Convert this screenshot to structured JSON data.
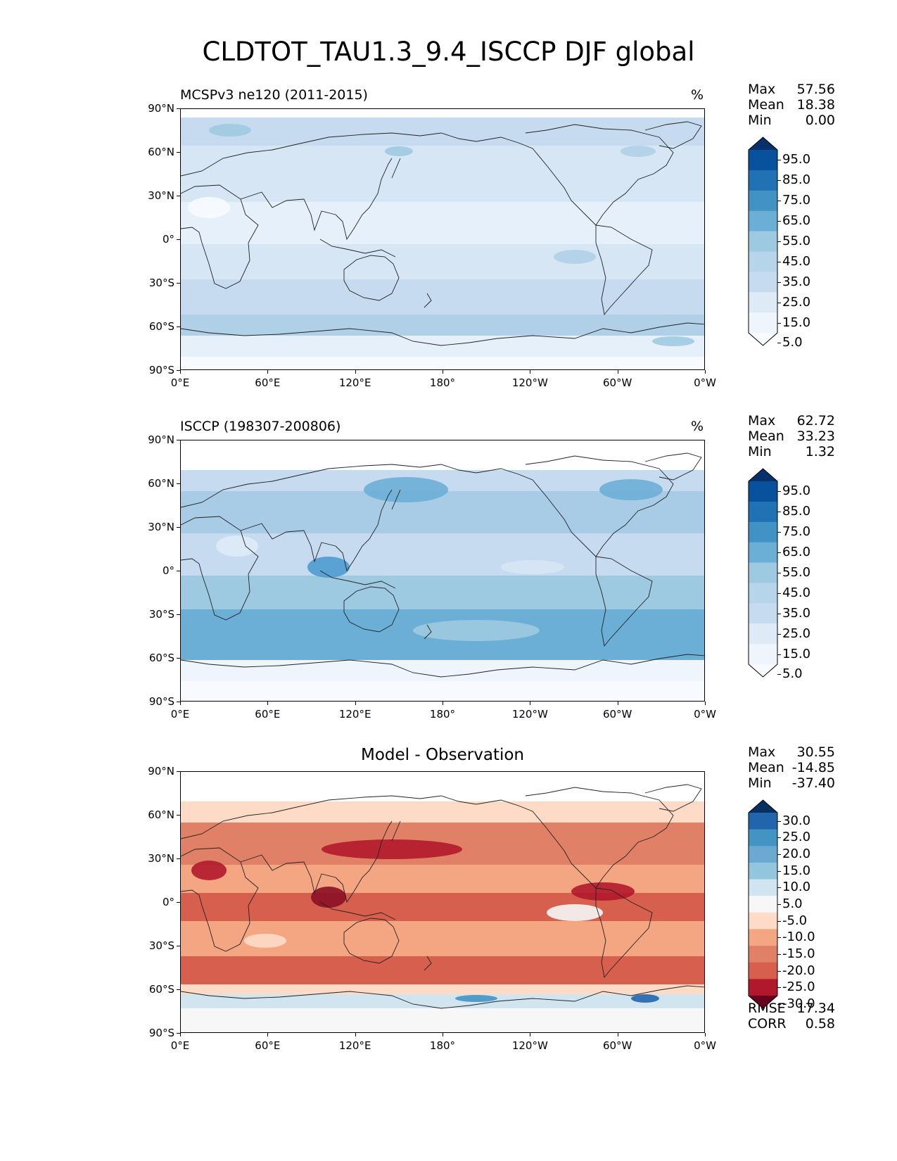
{
  "figure_title": "CLDTOT_TAU1.3_9.4_ISCCP DJF global",
  "lon_ticks": [
    "0°E",
    "60°E",
    "120°E",
    "180°",
    "120°W",
    "60°W",
    "0°W"
  ],
  "lat_ticks": [
    "90°N",
    "60°N",
    "30°N",
    "0°",
    "30°S",
    "60°S",
    "90°S"
  ],
  "panels": [
    {
      "id": "model",
      "title_left": "MCSPv3 ne120 (2011-2015)",
      "title_right": "%",
      "title_center": "",
      "stats": [
        {
          "label": "Max",
          "value": "57.56"
        },
        {
          "label": "Mean",
          "value": "18.38"
        },
        {
          "label": "Min",
          "value": "0.00"
        }
      ],
      "colorbar": {
        "labels": [
          "95.0",
          "85.0",
          "75.0",
          "65.0",
          "55.0",
          "45.0",
          "35.0",
          "25.0",
          "15.0",
          "5.0"
        ],
        "colors": [
          "#08306b",
          "#08519c",
          "#2171b5",
          "#4292c6",
          "#6baed6",
          "#9ecae1",
          "#b6d5ea",
          "#c6dbef",
          "#deebf7",
          "#eef5fc",
          "#f7fbff"
        ]
      }
    },
    {
      "id": "obs",
      "title_left": "ISCCP (198307-200806)",
      "title_right": "%",
      "title_center": "",
      "stats": [
        {
          "label": "Max",
          "value": "62.72"
        },
        {
          "label": "Mean",
          "value": "33.23"
        },
        {
          "label": "Min",
          "value": "1.32"
        }
      ],
      "colorbar": {
        "labels": [
          "95.0",
          "85.0",
          "75.0",
          "65.0",
          "55.0",
          "45.0",
          "35.0",
          "25.0",
          "15.0",
          "5.0"
        ],
        "colors": [
          "#08306b",
          "#08519c",
          "#2171b5",
          "#4292c6",
          "#6baed6",
          "#9ecae1",
          "#b6d5ea",
          "#c6dbef",
          "#deebf7",
          "#eef5fc",
          "#f7fbff"
        ]
      }
    },
    {
      "id": "diff",
      "title_left": "",
      "title_right": "",
      "title_center": "Model - Observation",
      "stats": [
        {
          "label": "Max",
          "value": "30.55"
        },
        {
          "label": "Mean",
          "value": "-14.85"
        },
        {
          "label": "Min",
          "value": "-37.40"
        }
      ],
      "extra_stats": [
        {
          "label": "RMSE",
          "value": "17.34"
        },
        {
          "label": "CORR",
          "value": "0.58"
        }
      ],
      "colorbar": {
        "labels": [
          "30.0",
          "25.0",
          "20.0",
          "15.0",
          "10.0",
          "5.0",
          "-5.0",
          "-10.0",
          "-15.0",
          "-20.0",
          "-25.0",
          "-30.0"
        ],
        "colors": [
          "#053061",
          "#2166ac",
          "#4393c3",
          "#6ba9d2",
          "#92c5de",
          "#d1e5f0",
          "#f7f7f7",
          "#fddbc7",
          "#f4a582",
          "#e08066",
          "#d6604d",
          "#b2182b",
          "#67001f"
        ]
      }
    }
  ]
}
